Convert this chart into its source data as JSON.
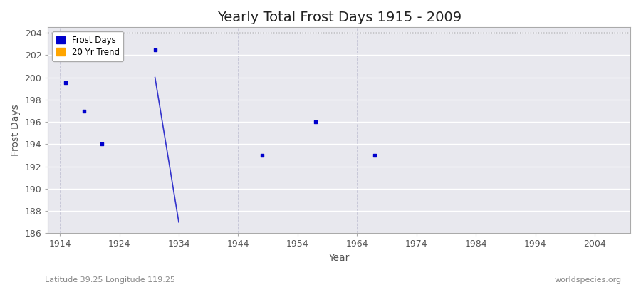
{
  "title": "Yearly Total Frost Days 1915 - 2009",
  "xlabel": "Year",
  "ylabel": "Frost Days",
  "footer_left": "Latitude 39.25 Longitude 119.25",
  "footer_right": "worldspecies.org",
  "ylim": [
    186,
    204.5
  ],
  "xlim": [
    1912,
    2010
  ],
  "yticks": [
    186,
    188,
    190,
    192,
    194,
    196,
    198,
    200,
    202,
    204
  ],
  "xticks": [
    1914,
    1924,
    1934,
    1944,
    1954,
    1964,
    1974,
    1984,
    1994,
    2004
  ],
  "xtick_labels": [
    "1914",
    "1924",
    "1934",
    "1944",
    "1954",
    "1964",
    "1974",
    "1984",
    "1994",
    "2004"
  ],
  "dashed_line_y": 204,
  "scatter_years": [
    1915,
    1918,
    1921,
    1930,
    1948,
    1957,
    1967
  ],
  "scatter_values": [
    199.5,
    197,
    194,
    202.5,
    193,
    196,
    193
  ],
  "trend_line_x": [
    1930,
    1934
  ],
  "trend_line_y": [
    200,
    187
  ],
  "scatter_color": "#0000cc",
  "trend_color": "#3333cc",
  "plot_bg_color": "#e8e8ee",
  "fig_bg_color": "#ffffff",
  "grid_color_h": "#ffffff",
  "grid_color_v": "#c8c8d8",
  "title_fontsize": 14,
  "axis_label_fontsize": 10,
  "tick_fontsize": 9,
  "footer_fontsize": 8,
  "tick_color": "#555555",
  "title_color": "#222222",
  "legend_frost_color": "#0000cc",
  "legend_trend_color": "#ffa500"
}
